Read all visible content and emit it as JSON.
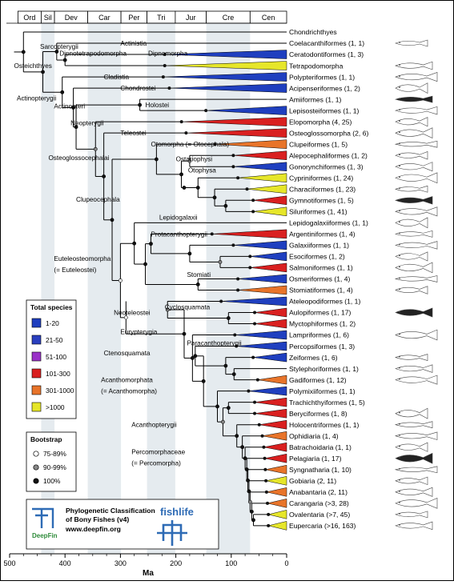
{
  "periods": [
    "Ord",
    "Sil",
    "Dev",
    "Car",
    "Per",
    "Tri",
    "Jur",
    "Cre",
    "Cen"
  ],
  "time_axis": {
    "ticks": [
      500,
      400,
      300,
      200,
      100,
      0
    ],
    "label": "Ma",
    "range": [
      500,
      0
    ],
    "period_bounds": [
      485,
      443,
      419,
      359,
      299,
      252,
      201,
      145,
      66,
      0
    ]
  },
  "taxa": [
    {
      "name": "Chondrichthyes",
      "color": "",
      "tip": "line"
    },
    {
      "name": "Coelacanthiformes (1, 1)",
      "color": "#1f3fbf",
      "tip": "line"
    },
    {
      "name": "Ceratodontiformes (1, 3)",
      "color": "#1f3fbf",
      "tip": "wedge"
    },
    {
      "name": "Tetrapodomorpha",
      "color": "#e6e62a",
      "tip": "wedge"
    },
    {
      "name": "Polypteriformes (1, 1)",
      "color": "#1f3fbf",
      "tip": "wedge"
    },
    {
      "name": "Acipenseriformes (1, 2)",
      "color": "#1f3fbf",
      "tip": "wedge"
    },
    {
      "name": "Amiiformes (1, 1)",
      "color": "#1f3fbf",
      "tip": "line"
    },
    {
      "name": "Lepisosteiformes (1, 1)",
      "color": "#1f3fbf",
      "tip": "wedge"
    },
    {
      "name": "Elopomorpha (4, 25)",
      "color": "#d92020",
      "tip": "wedge"
    },
    {
      "name": "Osteoglossomorpha (2, 6)",
      "color": "#d92020",
      "tip": "wedge"
    },
    {
      "name": "Clupeiformes (1, 5)",
      "color": "#e8742a",
      "tip": "wedge"
    },
    {
      "name": "Alepocephaliformes (1, 2)",
      "color": "#d92020",
      "tip": "wedge"
    },
    {
      "name": "Gonorynchiformes (1, 3)",
      "color": "#1f3fbf",
      "tip": "wedge"
    },
    {
      "name": "Cypriniformes (1, 24)",
      "color": "#e6e62a",
      "tip": "wedge"
    },
    {
      "name": "Characiformes (1, 23)",
      "color": "#e6e62a",
      "tip": "wedge"
    },
    {
      "name": "Gymnotiformes (1, 5)",
      "color": "#d92020",
      "tip": "wedge"
    },
    {
      "name": "Siluriformes (1, 41)",
      "color": "#e6e62a",
      "tip": "wedge"
    },
    {
      "name": "Lepidogalaxiiformes (1, 1)",
      "color": "#1f3fbf",
      "tip": "line"
    },
    {
      "name": "Argentiniformes (1, 4)",
      "color": "#d92020",
      "tip": "wedge"
    },
    {
      "name": "Galaxiiformes (1, 1)",
      "color": "#1f3fbf",
      "tip": "wedge"
    },
    {
      "name": "Esociformes (1, 2)",
      "color": "#1f3fbf",
      "tip": "wedge"
    },
    {
      "name": "Salmoniformes (1, 1)",
      "color": "#d92020",
      "tip": "wedge"
    },
    {
      "name": "Osmeriformes (1, 4)",
      "color": "#1f3fbf",
      "tip": "wedge"
    },
    {
      "name": "Stomiatiformes (1, 4)",
      "color": "#e8742a",
      "tip": "wedge"
    },
    {
      "name": "Ateleopodiformes (1, 1)",
      "color": "#1f3fbf",
      "tip": "wedge"
    },
    {
      "name": "Aulopiformes (1, 17)",
      "color": "#d92020",
      "tip": "wedge"
    },
    {
      "name": "Myctophiformes (1, 2)",
      "color": "#d92020",
      "tip": "wedge"
    },
    {
      "name": "Lampriformes (1, 6)",
      "color": "#1f3fbf",
      "tip": "wedge"
    },
    {
      "name": "Percopsiformes (1, 3)",
      "color": "#1f3fbf",
      "tip": "wedge"
    },
    {
      "name": "Zeiformes (1, 6)",
      "color": "#1f3fbf",
      "tip": "wedge"
    },
    {
      "name": "Stylephoriformes (1, 1)",
      "color": "#1f3fbf",
      "tip": "line"
    },
    {
      "name": "Gadiformes (1, 12)",
      "color": "#e8742a",
      "tip": "wedge"
    },
    {
      "name": "Polymixiiformes (1, 1)",
      "color": "#1f3fbf",
      "tip": "wedge"
    },
    {
      "name": "Trachichthyiformes (1, 5)",
      "color": "#d92020",
      "tip": "wedge"
    },
    {
      "name": "Beryciformes (1, 8)",
      "color": "#d92020",
      "tip": "wedge"
    },
    {
      "name": "Holocentriformes (1, 1)",
      "color": "#d92020",
      "tip": "wedge"
    },
    {
      "name": "Ophidiaria (1, 4)",
      "color": "#e8742a",
      "tip": "wedge"
    },
    {
      "name": "Batrachoidaria (1, 1)",
      "color": "#d92020",
      "tip": "wedge"
    },
    {
      "name": "Pelagiaria (1, 17)",
      "color": "#d92020",
      "tip": "wedge"
    },
    {
      "name": "Syngnatharia (1, 10)",
      "color": "#e8742a",
      "tip": "wedge"
    },
    {
      "name": "Gobiaria (2, 11)",
      "color": "#e6e62a",
      "tip": "wedge"
    },
    {
      "name": "Anabantaria (2, 11)",
      "color": "#e8742a",
      "tip": "wedge"
    },
    {
      "name": "Carangaria (>3, 28)",
      "color": "#e8742a",
      "tip": "wedge"
    },
    {
      "name": "Ovalentaria (>7, 45)",
      "color": "#e6e62a",
      "tip": "wedge"
    },
    {
      "name": "Eupercaria (>16, 163)",
      "color": "#e6e62a",
      "tip": "wedge"
    }
  ],
  "node_labels": [
    {
      "text": "Sarcopterygii",
      "row": 1.3,
      "age": 445
    },
    {
      "text": "Actinistia",
      "row": 1.0,
      "age": 300
    },
    {
      "text": "Dipnotetrapodomorpha",
      "row": 1.9,
      "age": 410
    },
    {
      "text": "Dipnomorpha",
      "row": 1.9,
      "age": 250
    },
    {
      "text": "Osteichthyes",
      "row": 3.0,
      "age": 492
    },
    {
      "text": "Cladistia",
      "row": 4.0,
      "age": 330
    },
    {
      "text": "Chondrostei",
      "row": 5.0,
      "age": 300
    },
    {
      "text": "Actinopterygii",
      "row": 5.9,
      "age": 487
    },
    {
      "text": "Actinopteri",
      "row": 6.6,
      "age": 420
    },
    {
      "text": "Holostei",
      "row": 6.5,
      "age": 255
    },
    {
      "text": "Neopterygii",
      "row": 8.1,
      "age": 390
    },
    {
      "text": "Teleostei",
      "row": 9.0,
      "age": 300
    },
    {
      "text": "Otomorpha (= Otocephala)",
      "row": 10.0,
      "age": 245
    },
    {
      "text": "Osteoglossocephalai",
      "row": 11.2,
      "age": 430
    },
    {
      "text": "Ostariophysi",
      "row": 11.3,
      "age": 200
    },
    {
      "text": "Otophysa",
      "row": 12.3,
      "age": 178
    },
    {
      "text": "Clupeocephala",
      "row": 14.9,
      "age": 380
    },
    {
      "text": "Lepidogalaxii",
      "row": 16.5,
      "age": 230
    },
    {
      "text": "Protacanthopterygii",
      "row": 18.0,
      "age": 245
    },
    {
      "text": "Euteleosteomorpha",
      "row": 20.2,
      "age": 420
    },
    {
      "text": "(= Euteleostei)",
      "row": 21.2,
      "age": 420
    },
    {
      "text": "Stomiati",
      "row": 21.6,
      "age": 180
    },
    {
      "text": "Cyclosquamata",
      "row": 24.5,
      "age": 220
    },
    {
      "text": "Neoteleostei",
      "row": 25.0,
      "age": 312
    },
    {
      "text": "Eurypterygia",
      "row": 26.7,
      "age": 300
    },
    {
      "text": "Paracanthopterygii",
      "row": 27.7,
      "age": 180
    },
    {
      "text": "Ctenosquamata",
      "row": 28.6,
      "age": 330
    },
    {
      "text": "Acanthomorphata",
      "row": 31.0,
      "age": 335
    },
    {
      "text": "(= Acanthomorpha)",
      "row": 32.0,
      "age": 335
    },
    {
      "text": "Acanthopterygii",
      "row": 35.0,
      "age": 280
    },
    {
      "text": "Percomorphaceae",
      "row": 37.4,
      "age": 280
    },
    {
      "text": "(= Percomorpha)",
      "row": 38.4,
      "age": 280
    }
  ],
  "legend_species": {
    "title": "Total species",
    "items": [
      {
        "label": "1-20",
        "color": "#1f3fbf"
      },
      {
        "label": "21-50",
        "color": "#2a3fbf"
      },
      {
        "label": "51-100",
        "color": "#9a32c8"
      },
      {
        "label": "101-300",
        "color": "#d92020"
      },
      {
        "label": "301-1000",
        "color": "#e8742a"
      },
      {
        "label": ">1000",
        "color": "#e6e62a"
      }
    ]
  },
  "legend_bootstrap": {
    "title": "Bootstrap",
    "items": [
      {
        "label": "75-89%",
        "color": "#ffffff"
      },
      {
        "label": "90-99%",
        "color": "#888888"
      },
      {
        "label": "100%",
        "color": "#111111"
      }
    ]
  },
  "credit": {
    "title1": "Phylogenetic Classification",
    "title2": "of Bony Fishes (v4)",
    "url": "www.deepfin.org",
    "deepfin_logo": "DeepFin",
    "fishlife_logo": "fishlife"
  }
}
